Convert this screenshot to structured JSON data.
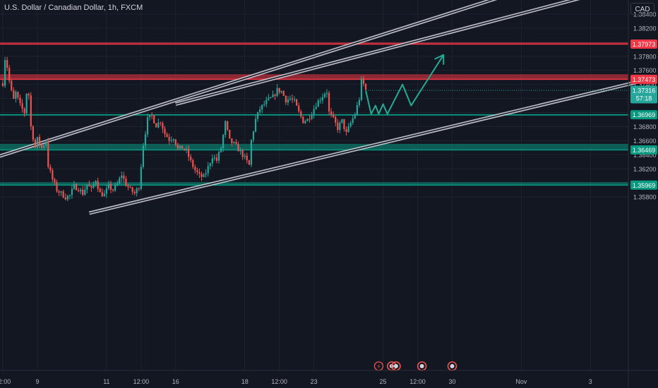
{
  "header": {
    "title": "U.S. Dollar / Canadian Dollar, 1h, FXCM",
    "currency_button": "CAD"
  },
  "colors": {
    "background": "#131722",
    "grid": "#1e222d",
    "bull": "#26a69a",
    "bear": "#ef5350",
    "resistance_zone": "#f23645",
    "support_zone": "#089981",
    "channel": "#d1d4dc",
    "projection": "#22ab94",
    "axis_text": "#b2b5be"
  },
  "chart_data": {
    "type": "candlestick",
    "title": "U.S. Dollar / Canadian Dollar, 1h, FXCM",
    "ylim": [
      1.3573,
      1.3848
    ],
    "y_ticks": [
      "1.35800",
      "1.36000",
      "1.36200",
      "1.36400",
      "1.36600",
      "1.36800",
      "1.37000",
      "1.37200",
      "1.37400",
      "1.37600",
      "1.37800",
      "1.38000",
      "1.38200",
      "1.38400"
    ],
    "x_ticks": [
      {
        "label": "12:00",
        "x": 0
      },
      {
        "label": "9",
        "x": 16
      },
      {
        "label": "11",
        "x": 48
      },
      {
        "label": "12:00",
        "x": 64
      },
      {
        "label": "16",
        "x": 80
      },
      {
        "label": "18",
        "x": 112
      },
      {
        "label": "12:00",
        "x": 128
      },
      {
        "label": "23",
        "x": 144
      },
      {
        "label": "25",
        "x": 176
      },
      {
        "label": "12:00",
        "x": 192
      },
      {
        "label": "30",
        "x": 208
      },
      {
        "label": "Nov",
        "x": 240
      },
      {
        "label": "3",
        "x": 272
      }
    ],
    "price_path": [
      [
        0,
        1.3742
      ],
      [
        1.2,
        1.3784
      ],
      [
        2,
        1.3765
      ],
      [
        3.5,
        1.3735
      ],
      [
        5,
        1.3718
      ],
      [
        6,
        1.3728
      ],
      [
        8,
        1.371
      ],
      [
        10,
        1.37
      ],
      [
        11,
        1.3728
      ],
      [
        12,
        1.3725
      ],
      [
        13,
        1.368
      ],
      [
        14,
        1.3665
      ],
      [
        15,
        1.365
      ],
      [
        16,
        1.3662
      ],
      [
        18,
        1.365
      ],
      [
        20,
        1.366
      ],
      [
        21,
        1.3625
      ],
      [
        23,
        1.3605
      ],
      [
        25,
        1.359
      ],
      [
        27,
        1.3585
      ],
      [
        29,
        1.358
      ],
      [
        31,
        1.3582
      ],
      [
        33,
        1.3595
      ],
      [
        35,
        1.3592
      ],
      [
        37,
        1.3585
      ],
      [
        39,
        1.3598
      ],
      [
        41,
        1.359
      ],
      [
        43,
        1.3605
      ],
      [
        45,
        1.3585
      ],
      [
        47,
        1.3583
      ],
      [
        49,
        1.3595
      ],
      [
        51,
        1.359
      ],
      [
        53,
        1.3598
      ],
      [
        55,
        1.3612
      ],
      [
        57,
        1.3598
      ],
      [
        59,
        1.359
      ],
      [
        61,
        1.3585
      ],
      [
        63,
        1.3595
      ],
      [
        65,
        1.3655
      ],
      [
        67,
        1.369
      ],
      [
        69,
        1.3695
      ],
      [
        71,
        1.3682
      ],
      [
        73,
        1.3688
      ],
      [
        75,
        1.367
      ],
      [
        77,
        1.3662
      ],
      [
        79,
        1.3665
      ],
      [
        81,
        1.3648
      ],
      [
        83,
        1.365
      ],
      [
        85,
        1.3645
      ],
      [
        87,
        1.363
      ],
      [
        89,
        1.3618
      ],
      [
        91,
        1.361
      ],
      [
        93,
        1.3608
      ],
      [
        95,
        1.3622
      ],
      [
        97,
        1.3638
      ],
      [
        99,
        1.3632
      ],
      [
        101,
        1.365
      ],
      [
        103,
        1.3685
      ],
      [
        105,
        1.366
      ],
      [
        107,
        1.3655
      ],
      [
        109,
        1.3648
      ],
      [
        111,
        1.364
      ],
      [
        113,
        1.363
      ],
      [
        114,
        1.3625
      ],
      [
        115,
        1.366
      ],
      [
        117,
        1.369
      ],
      [
        119,
        1.3705
      ],
      [
        121,
        1.3712
      ],
      [
        123,
        1.3718
      ],
      [
        125,
        1.3722
      ],
      [
        127,
        1.3732
      ],
      [
        129,
        1.373
      ],
      [
        131,
        1.3718
      ],
      [
        133,
        1.372
      ],
      [
        135,
        1.3715
      ],
      [
        137,
        1.37
      ],
      [
        139,
        1.3688
      ],
      [
        141,
        1.369
      ],
      [
        143,
        1.37
      ],
      [
        145,
        1.3712
      ],
      [
        147,
        1.372
      ],
      [
        149,
        1.3728
      ],
      [
        150,
        1.373
      ],
      [
        151,
        1.37
      ],
      [
        153,
        1.369
      ],
      [
        155,
        1.3678
      ],
      [
        157,
        1.3688
      ],
      [
        159,
        1.367
      ],
      [
        161,
        1.3685
      ],
      [
        163,
        1.3698
      ],
      [
        165,
        1.372
      ],
      [
        166,
        1.3745
      ],
      [
        167,
        1.374
      ],
      [
        168,
        1.3732
      ]
    ],
    "projection_path": [
      [
        168,
        1.3731
      ],
      [
        170.5,
        1.3698
      ],
      [
        172.5,
        1.371
      ],
      [
        174,
        1.3698
      ],
      [
        176,
        1.3712
      ],
      [
        178,
        1.3698
      ],
      [
        185,
        1.374
      ],
      [
        189,
        1.371
      ],
      [
        204,
        1.3782
      ]
    ],
    "channel": {
      "upper": [
        [
          -20,
          1.362
        ],
        [
          300,
          1.3932
        ]
      ],
      "upper_parallel": [
        [
          80,
          1.3712
        ],
        [
          300,
          1.3889
        ]
      ],
      "lower": [
        [
          40,
          1.3557
        ],
        [
          300,
          1.3748
        ]
      ]
    },
    "resistance_zones": [
      {
        "top": 1.37998,
        "bottom": 1.37973,
        "label": "1.37973"
      },
      {
        "top": 1.37545,
        "bottom": 1.37473,
        "label": "1.37473"
      }
    ],
    "support_zones": [
      {
        "top": 1.36975,
        "bottom": 1.36969,
        "label": "1.36969"
      },
      {
        "top": 1.36555,
        "bottom": 1.36469,
        "label": "1.36469"
      },
      {
        "top": 1.3601,
        "bottom": 1.35969,
        "label": "1.35969"
      }
    ],
    "current_price": {
      "value": 1.37316,
      "label": "1.37316",
      "countdown": "57:18"
    },
    "event_markers": [
      {
        "x": 174,
        "symbol": "⚡"
      },
      {
        "x": 180,
        "symbol": "●"
      },
      {
        "x": 182,
        "symbol": "●"
      },
      {
        "x": 194,
        "symbol": "●"
      },
      {
        "x": 208,
        "symbol": "●"
      }
    ]
  }
}
